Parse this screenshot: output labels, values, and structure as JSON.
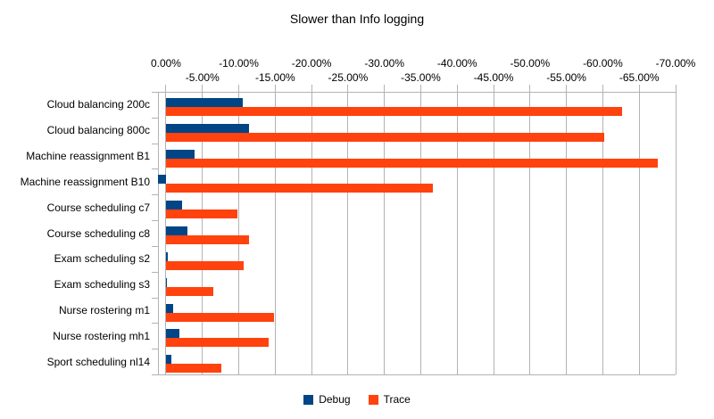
{
  "chart_data": {
    "type": "bar",
    "orientation": "horizontal",
    "title": "Slower than Info logging",
    "categories": [
      "Cloud balancing 200c",
      "Cloud balancing 800c",
      "Machine reassignment B1",
      "Machine reassignment B10",
      "Course scheduling c7",
      "Course scheduling c8",
      "Exam scheduling s2",
      "Exam scheduling s3",
      "Nurse rostering m1",
      "Nurse rostering mh1",
      "Sport scheduling nl14"
    ],
    "series": [
      {
        "name": "Debug",
        "color": "#004586",
        "values": [
          -10.6,
          -11.4,
          -3.9,
          1.1,
          -2.2,
          -2.9,
          -0.3,
          -0.1,
          -1.0,
          -1.8,
          -0.8
        ]
      },
      {
        "name": "Trace",
        "color": "#ff420e",
        "values": [
          -62.7,
          -60.2,
          -67.5,
          -36.7,
          -9.8,
          -11.4,
          -10.7,
          -6.5,
          -14.8,
          -14.1,
          -7.6
        ]
      }
    ],
    "value_axis": {
      "unit": "%",
      "axis_min_pct": 1.1,
      "axis_max_pct": -70,
      "grid_step_pct": 5,
      "labels_row1": [
        "0.00%",
        "-10.00%",
        "-20.00%",
        "-30.00%",
        "-40.00%",
        "-50.00%",
        "-60.00%",
        "-70.00%"
      ],
      "labels_row1_pcts": [
        0,
        -10,
        -20,
        -30,
        -40,
        -50,
        -60,
        -70
      ],
      "labels_row2": [
        "-5.00%",
        "-15.00%",
        "-25.00%",
        "-35.00%",
        "-45.00%",
        "-55.00%",
        "-65.00%"
      ],
      "labels_row2_pcts": [
        -5,
        -15,
        -25,
        -35,
        -45,
        -55,
        -65
      ]
    },
    "legend": {
      "position": "bottom",
      "entries": [
        "Debug",
        "Trace"
      ]
    },
    "colors": {
      "grid": "#b3b3b3",
      "text": "#000000",
      "background": "#ffffff"
    }
  }
}
